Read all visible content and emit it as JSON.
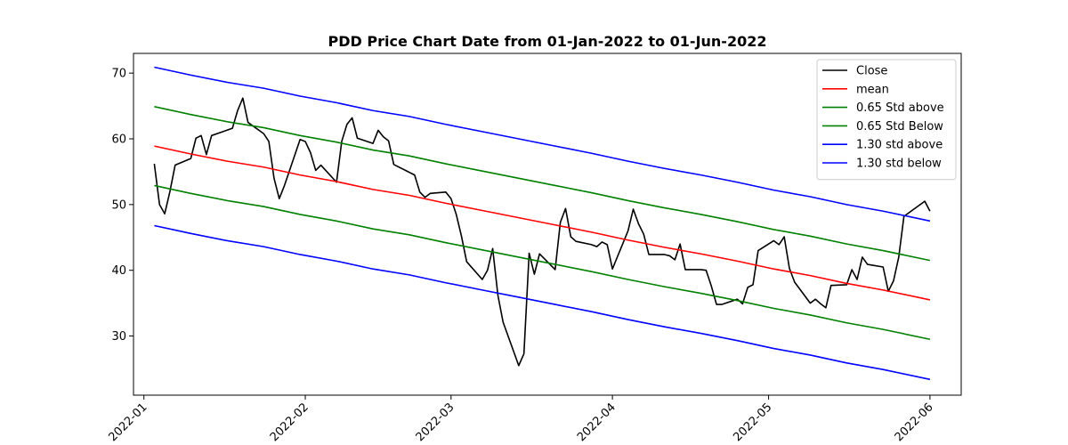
{
  "chart_data": {
    "type": "line",
    "title": "PDD Price Chart Date from 01-Jan-2022 to 01-Jun-2022",
    "xlabel": "",
    "ylabel": "",
    "xlim": [
      "2021-12-30",
      "2022-06-07"
    ],
    "ylim": [
      21,
      73
    ],
    "grid": false,
    "legend_position": "top-right",
    "x_ticks": [
      "2022-01",
      "2022-02",
      "2022-03",
      "2022-04",
      "2022-05",
      "2022-06"
    ],
    "x_tick_dates": [
      "2022-01-01",
      "2022-02-01",
      "2022-03-01",
      "2022-04-01",
      "2022-05-01",
      "2022-06-01"
    ],
    "y_ticks": [
      30,
      40,
      50,
      60,
      70
    ],
    "series": [
      {
        "name": "Close",
        "color": "#000000",
        "points": [
          [
            "2022-01-03",
            56.2
          ],
          [
            "2022-01-04",
            50.0
          ],
          [
            "2022-01-05",
            48.6
          ],
          [
            "2022-01-06",
            52.0
          ],
          [
            "2022-01-07",
            56.0
          ],
          [
            "2022-01-10",
            57.0
          ],
          [
            "2022-01-11",
            60.1
          ],
          [
            "2022-01-12",
            60.5
          ],
          [
            "2022-01-13",
            57.6
          ],
          [
            "2022-01-14",
            60.5
          ],
          [
            "2022-01-18",
            61.6
          ],
          [
            "2022-01-19",
            64.3
          ],
          [
            "2022-01-20",
            66.2
          ],
          [
            "2022-01-21",
            62.5
          ],
          [
            "2022-01-24",
            60.8
          ],
          [
            "2022-01-25",
            59.6
          ],
          [
            "2022-01-26",
            54.0
          ],
          [
            "2022-01-27",
            50.9
          ],
          [
            "2022-01-28",
            52.9
          ],
          [
            "2022-01-31",
            59.9
          ],
          [
            "2022-02-01",
            59.6
          ],
          [
            "2022-02-02",
            57.9
          ],
          [
            "2022-02-03",
            55.2
          ],
          [
            "2022-02-04",
            56.0
          ],
          [
            "2022-02-07",
            53.4
          ],
          [
            "2022-02-08",
            59.6
          ],
          [
            "2022-02-09",
            62.2
          ],
          [
            "2022-02-10",
            63.2
          ],
          [
            "2022-02-11",
            60.1
          ],
          [
            "2022-02-14",
            59.3
          ],
          [
            "2022-02-15",
            61.3
          ],
          [
            "2022-02-16",
            60.3
          ],
          [
            "2022-02-17",
            59.7
          ],
          [
            "2022-02-18",
            56.1
          ],
          [
            "2022-02-22",
            54.5
          ],
          [
            "2022-02-23",
            51.9
          ],
          [
            "2022-02-24",
            51.1
          ],
          [
            "2022-02-25",
            51.7
          ],
          [
            "2022-02-28",
            51.9
          ],
          [
            "2022-03-01",
            50.9
          ],
          [
            "2022-03-02",
            48.5
          ],
          [
            "2022-03-03",
            45.2
          ],
          [
            "2022-03-04",
            41.3
          ],
          [
            "2022-03-07",
            38.6
          ],
          [
            "2022-03-08",
            40.0
          ],
          [
            "2022-03-09",
            43.3
          ],
          [
            "2022-03-10",
            36.2
          ],
          [
            "2022-03-11",
            32.1
          ],
          [
            "2022-03-14",
            25.5
          ],
          [
            "2022-03-15",
            27.3
          ],
          [
            "2022-03-16",
            42.6
          ],
          [
            "2022-03-17",
            39.4
          ],
          [
            "2022-03-18",
            42.5
          ],
          [
            "2022-03-21",
            40.1
          ],
          [
            "2022-03-22",
            47.3
          ],
          [
            "2022-03-23",
            49.4
          ],
          [
            "2022-03-24",
            45.1
          ],
          [
            "2022-03-25",
            44.4
          ],
          [
            "2022-03-28",
            43.9
          ],
          [
            "2022-03-29",
            43.6
          ],
          [
            "2022-03-30",
            44.3
          ],
          [
            "2022-03-31",
            43.9
          ],
          [
            "2022-04-01",
            40.2
          ],
          [
            "2022-04-04",
            46.0
          ],
          [
            "2022-04-05",
            49.3
          ],
          [
            "2022-04-06",
            47.1
          ],
          [
            "2022-04-07",
            45.5
          ],
          [
            "2022-04-08",
            42.4
          ],
          [
            "2022-04-11",
            42.4
          ],
          [
            "2022-04-12",
            42.2
          ],
          [
            "2022-04-13",
            41.6
          ],
          [
            "2022-04-14",
            44.0
          ],
          [
            "2022-04-15",
            40.1
          ],
          [
            "2022-04-18",
            40.1
          ],
          [
            "2022-04-19",
            40.0
          ],
          [
            "2022-04-20",
            37.6
          ],
          [
            "2022-04-21",
            34.8
          ],
          [
            "2022-04-22",
            34.8
          ],
          [
            "2022-04-25",
            35.6
          ],
          [
            "2022-04-26",
            34.9
          ],
          [
            "2022-04-27",
            37.4
          ],
          [
            "2022-04-28",
            37.8
          ],
          [
            "2022-04-29",
            43.0
          ],
          [
            "2022-05-02",
            44.5
          ],
          [
            "2022-05-03",
            43.9
          ],
          [
            "2022-05-04",
            45.1
          ],
          [
            "2022-05-05",
            40.3
          ],
          [
            "2022-05-06",
            38.2
          ],
          [
            "2022-05-09",
            35.0
          ],
          [
            "2022-05-10",
            35.6
          ],
          [
            "2022-05-11",
            34.9
          ],
          [
            "2022-05-12",
            34.3
          ],
          [
            "2022-05-13",
            37.7
          ],
          [
            "2022-05-16",
            37.8
          ],
          [
            "2022-05-17",
            40.1
          ],
          [
            "2022-05-18",
            38.6
          ],
          [
            "2022-05-19",
            42.0
          ],
          [
            "2022-05-20",
            40.9
          ],
          [
            "2022-05-23",
            40.5
          ],
          [
            "2022-05-24",
            36.8
          ],
          [
            "2022-05-25",
            38.4
          ],
          [
            "2022-05-26",
            42.0
          ],
          [
            "2022-05-27",
            48.2
          ],
          [
            "2022-05-31",
            50.5
          ],
          [
            "2022-06-01",
            49.0
          ]
        ]
      },
      {
        "name": "mean",
        "color": "#ff0000",
        "points": [
          [
            "2022-01-03",
            58.9
          ],
          [
            "2022-01-10",
            57.7
          ],
          [
            "2022-01-17",
            56.6
          ],
          [
            "2022-01-24",
            55.7
          ],
          [
            "2022-01-31",
            54.5
          ],
          [
            "2022-02-07",
            53.5
          ],
          [
            "2022-02-14",
            52.3
          ],
          [
            "2022-02-21",
            51.4
          ],
          [
            "2022-02-28",
            50.2
          ],
          [
            "2022-03-07",
            49.1
          ],
          [
            "2022-03-14",
            48.0
          ],
          [
            "2022-03-21",
            46.9
          ],
          [
            "2022-03-28",
            45.8
          ],
          [
            "2022-04-04",
            44.6
          ],
          [
            "2022-04-11",
            43.5
          ],
          [
            "2022-04-18",
            42.5
          ],
          [
            "2022-04-25",
            41.4
          ],
          [
            "2022-05-02",
            40.2
          ],
          [
            "2022-05-09",
            39.2
          ],
          [
            "2022-05-16",
            38.0
          ],
          [
            "2022-05-23",
            37.0
          ],
          [
            "2022-06-01",
            35.5
          ]
        ]
      },
      {
        "name": "0.65 Std above",
        "color": "#008000",
        "points": [
          [
            "2022-01-03",
            64.9
          ],
          [
            "2022-01-10",
            63.7
          ],
          [
            "2022-01-17",
            62.6
          ],
          [
            "2022-01-24",
            61.7
          ],
          [
            "2022-01-31",
            60.5
          ],
          [
            "2022-02-07",
            59.5
          ],
          [
            "2022-02-14",
            58.3
          ],
          [
            "2022-02-21",
            57.4
          ],
          [
            "2022-02-28",
            56.2
          ],
          [
            "2022-03-07",
            55.1
          ],
          [
            "2022-03-14",
            54.0
          ],
          [
            "2022-03-21",
            52.9
          ],
          [
            "2022-03-28",
            51.8
          ],
          [
            "2022-04-04",
            50.6
          ],
          [
            "2022-04-11",
            49.5
          ],
          [
            "2022-04-18",
            48.5
          ],
          [
            "2022-04-25",
            47.4
          ],
          [
            "2022-05-02",
            46.2
          ],
          [
            "2022-05-09",
            45.2
          ],
          [
            "2022-05-16",
            44.0
          ],
          [
            "2022-05-23",
            43.0
          ],
          [
            "2022-06-01",
            41.5
          ]
        ]
      },
      {
        "name": "0.65 Std Below",
        "color": "#008000",
        "points": [
          [
            "2022-01-03",
            52.9
          ],
          [
            "2022-01-10",
            51.7
          ],
          [
            "2022-01-17",
            50.6
          ],
          [
            "2022-01-24",
            49.7
          ],
          [
            "2022-01-31",
            48.5
          ],
          [
            "2022-02-07",
            47.5
          ],
          [
            "2022-02-14",
            46.3
          ],
          [
            "2022-02-21",
            45.4
          ],
          [
            "2022-02-28",
            44.2
          ],
          [
            "2022-03-07",
            43.1
          ],
          [
            "2022-03-14",
            42.0
          ],
          [
            "2022-03-21",
            40.9
          ],
          [
            "2022-03-28",
            39.8
          ],
          [
            "2022-04-04",
            38.6
          ],
          [
            "2022-04-11",
            37.5
          ],
          [
            "2022-04-18",
            36.5
          ],
          [
            "2022-04-25",
            35.4
          ],
          [
            "2022-05-02",
            34.2
          ],
          [
            "2022-05-09",
            33.2
          ],
          [
            "2022-05-16",
            32.0
          ],
          [
            "2022-05-23",
            31.0
          ],
          [
            "2022-06-01",
            29.5
          ]
        ]
      },
      {
        "name": "1.30 std above",
        "color": "#0000ff",
        "points": [
          [
            "2022-01-03",
            70.9
          ],
          [
            "2022-01-10",
            69.7
          ],
          [
            "2022-01-17",
            68.6
          ],
          [
            "2022-01-24",
            67.7
          ],
          [
            "2022-01-31",
            66.5
          ],
          [
            "2022-02-07",
            65.5
          ],
          [
            "2022-02-14",
            64.3
          ],
          [
            "2022-02-21",
            63.4
          ],
          [
            "2022-02-28",
            62.2
          ],
          [
            "2022-03-07",
            61.1
          ],
          [
            "2022-03-14",
            60.0
          ],
          [
            "2022-03-21",
            58.9
          ],
          [
            "2022-03-28",
            57.8
          ],
          [
            "2022-04-04",
            56.6
          ],
          [
            "2022-04-11",
            55.5
          ],
          [
            "2022-04-18",
            54.5
          ],
          [
            "2022-04-25",
            53.4
          ],
          [
            "2022-05-02",
            52.2
          ],
          [
            "2022-05-09",
            51.2
          ],
          [
            "2022-05-16",
            50.0
          ],
          [
            "2022-05-23",
            49.0
          ],
          [
            "2022-06-01",
            47.5
          ]
        ]
      },
      {
        "name": "1.30 std below",
        "color": "#0000ff",
        "points": [
          [
            "2022-01-03",
            46.8
          ],
          [
            "2022-01-10",
            45.6
          ],
          [
            "2022-01-17",
            44.5
          ],
          [
            "2022-01-24",
            43.6
          ],
          [
            "2022-01-31",
            42.4
          ],
          [
            "2022-02-07",
            41.4
          ],
          [
            "2022-02-14",
            40.2
          ],
          [
            "2022-02-21",
            39.3
          ],
          [
            "2022-02-28",
            38.1
          ],
          [
            "2022-03-07",
            37.0
          ],
          [
            "2022-03-14",
            35.9
          ],
          [
            "2022-03-21",
            34.8
          ],
          [
            "2022-03-28",
            33.7
          ],
          [
            "2022-04-04",
            32.5
          ],
          [
            "2022-04-11",
            31.4
          ],
          [
            "2022-04-18",
            30.4
          ],
          [
            "2022-04-25",
            29.3
          ],
          [
            "2022-05-02",
            28.1
          ],
          [
            "2022-05-09",
            27.1
          ],
          [
            "2022-05-16",
            25.9
          ],
          [
            "2022-05-23",
            24.9
          ],
          [
            "2022-06-01",
            23.4
          ]
        ]
      }
    ]
  }
}
